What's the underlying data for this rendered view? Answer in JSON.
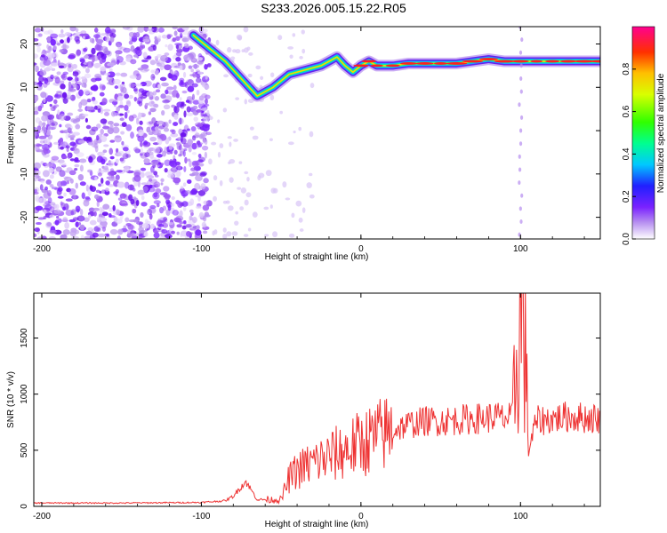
{
  "title": "S233.2026.005.15.22.R05",
  "chart_data": [
    {
      "type": "heatmap",
      "title": "S233.2026.005.15.22.R05",
      "xlabel": "Height of straight line (km)",
      "ylabel": "Frequency (Hz)",
      "xlim": [
        -205,
        150
      ],
      "ylim": [
        -25,
        24
      ],
      "xticks": [
        "-200",
        "-100",
        "0",
        "100"
      ],
      "yticks": [
        "20",
        "10",
        "0",
        "-10",
        "-20"
      ],
      "colorbar": {
        "label": "Normalized spectral amplitude",
        "range": [
          0,
          1
        ],
        "ticks": [
          "0.0",
          "0.2",
          "0.4",
          "0.6",
          "0.8"
        ]
      },
      "ridge": {
        "name": "dominant frequency",
        "x": [
          -105,
          -95,
          -85,
          -75,
          -65,
          -55,
          -45,
          -35,
          -25,
          -20,
          -15,
          -10,
          -5,
          0,
          5,
          10,
          20,
          30,
          40,
          50,
          60,
          70,
          80,
          90,
          100,
          110,
          120,
          130,
          140,
          150
        ],
        "y": [
          22,
          19,
          16,
          12,
          8,
          10,
          13,
          14,
          15,
          16,
          17,
          15,
          13.5,
          15,
          16,
          15,
          15,
          15.5,
          15.5,
          15.5,
          15.5,
          16,
          16.5,
          16,
          16,
          16,
          16,
          16,
          16,
          16
        ]
      }
    },
    {
      "type": "line",
      "xlabel": "Height of straight line (km)",
      "ylabel": "SNR (10 * v/v)",
      "xlim": [
        -205,
        150
      ],
      "ylim": [
        0,
        1900
      ],
      "xticks": [
        "-200",
        "-100",
        "0",
        "100"
      ],
      "yticks": [
        "0",
        "500",
        "1000",
        "1500"
      ],
      "series": [
        {
          "name": "SNR",
          "color": "#ee3333",
          "x": [
            -205,
            -150,
            -100,
            -85,
            -80,
            -75,
            -72,
            -65,
            -50,
            -45,
            -40,
            -30,
            -20,
            -10,
            0,
            10,
            20,
            30,
            40,
            50,
            60,
            70,
            80,
            85,
            90,
            95,
            97,
            99,
            101,
            103,
            105,
            110,
            120,
            130,
            140,
            150
          ],
          "y": [
            30,
            30,
            35,
            50,
            90,
            180,
            220,
            60,
            60,
            250,
            320,
            390,
            440,
            500,
            560,
            620,
            680,
            730,
            760,
            760,
            770,
            780,
            790,
            800,
            780,
            790,
            1200,
            1500,
            1850,
            1300,
            500,
            760,
            780,
            800,
            790,
            780
          ]
        }
      ]
    }
  ]
}
